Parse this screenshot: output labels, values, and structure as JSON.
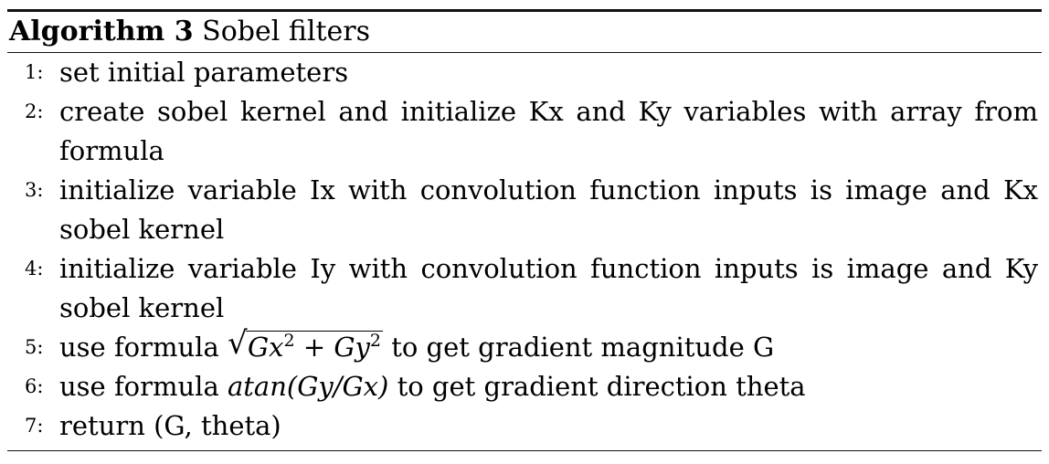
{
  "algorithm": {
    "label": "Algorithm 3",
    "title": "Sobel filters",
    "steps": [
      {
        "num": "1:",
        "text": "set initial parameters"
      },
      {
        "num": "2:",
        "text": "create sobel kernel and initialize Kx and Ky variables with array from formula"
      },
      {
        "num": "3:",
        "text": "initialize variable Ix with convolution function inputs is image and Kx sobel kernel"
      },
      {
        "num": "4:",
        "text": "initialize variable Iy with convolution function inputs is image and Ky sobel kernel"
      },
      {
        "num": "5:",
        "pre": "use formula",
        "math": {
          "a": "Gx",
          "a_exp": "2",
          "op": "+",
          "b": "Gy",
          "b_exp": "2"
        },
        "post": "to get gradient magnitude G"
      },
      {
        "num": "6:",
        "pre": "use formula",
        "math": "atan(Gy/Gx)",
        "post": "to get gradient direction theta"
      },
      {
        "num": "7:",
        "text": "return (G, theta)"
      }
    ]
  }
}
